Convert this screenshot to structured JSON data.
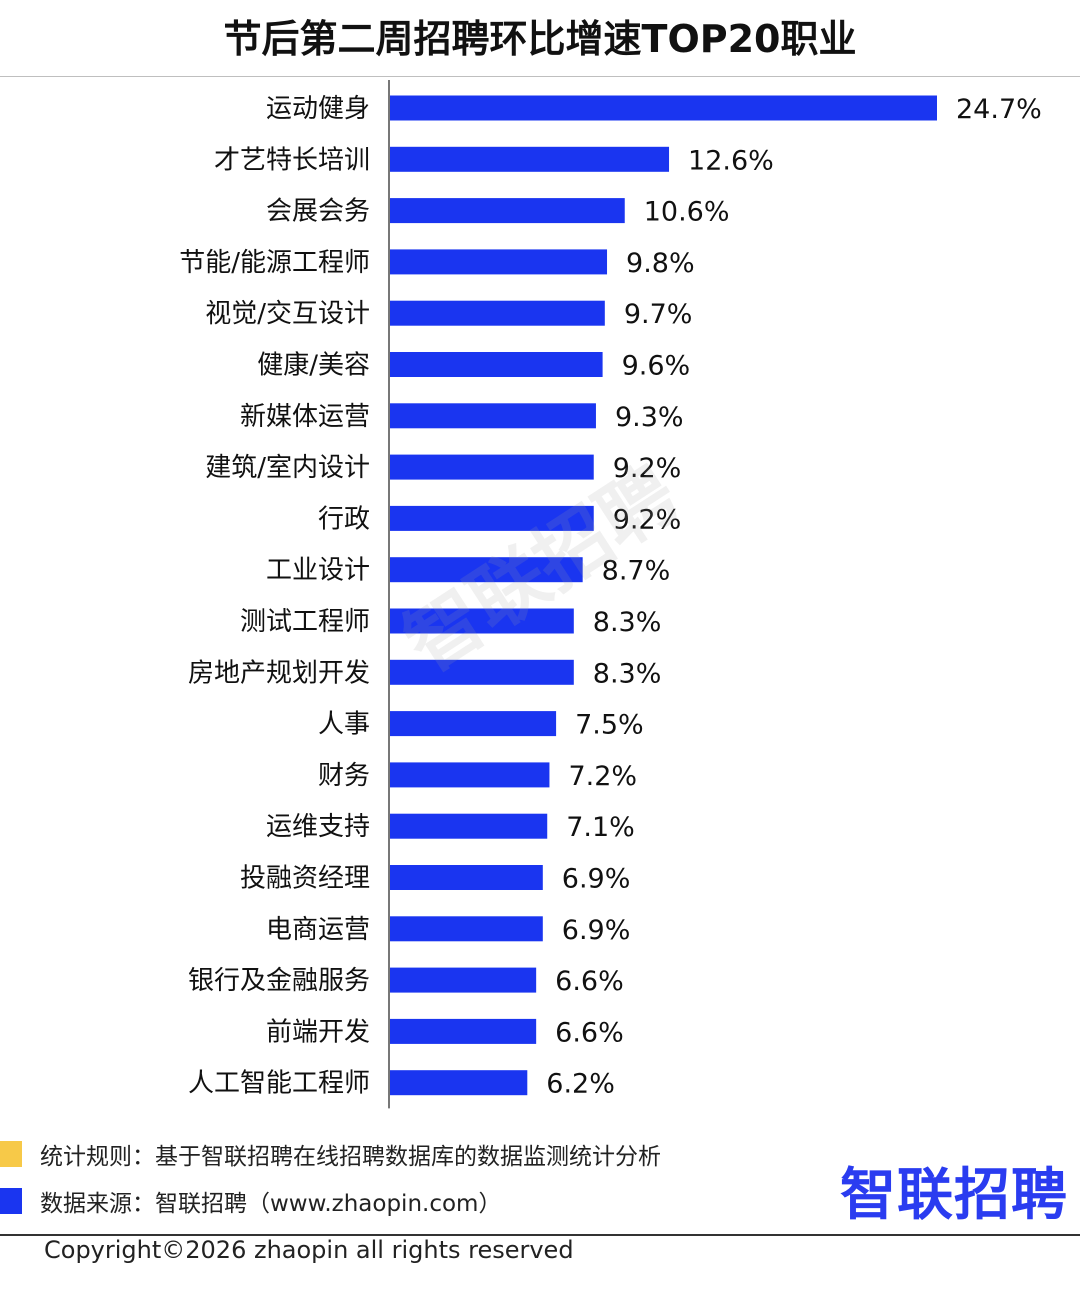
{
  "chart_data": {
    "type": "bar",
    "orientation": "horizontal",
    "title": "节后第二周招聘环比增速TOP20职业",
    "categories": [
      "运动健身",
      "才艺特长培训",
      "会展会务",
      "节能/能源工程师",
      "视觉/交互设计",
      "健康/美容",
      "新媒体运营",
      "建筑/室内设计",
      "行政",
      "工业设计",
      "测试工程师",
      "房地产规划开发",
      "人事",
      "财务",
      "运维支持",
      "投融资经理",
      "电商运营",
      "银行及金融服务",
      "前端开发",
      "人工智能工程师"
    ],
    "values": [
      24.7,
      12.6,
      10.6,
      9.8,
      9.7,
      9.6,
      9.3,
      9.2,
      9.2,
      8.7,
      8.3,
      8.3,
      7.5,
      7.2,
      7.1,
      6.9,
      6.9,
      6.6,
      6.6,
      6.2
    ],
    "value_labels": [
      "24.7%",
      "12.6%",
      "10.6%",
      "9.8%",
      "9.7%",
      "9.6%",
      "9.3%",
      "9.2%",
      "9.2%",
      "8.7%",
      "8.3%",
      "8.3%",
      "7.5%",
      "7.2%",
      "7.1%",
      "6.9%",
      "6.9%",
      "6.6%",
      "6.6%",
      "6.2%"
    ],
    "unit": "%",
    "xlim": [
      0,
      24.7
    ],
    "grid": false,
    "bar_color": "#1a35f0"
  },
  "watermark": "智联招聘",
  "legend": [
    {
      "text": "统计规则：基于智联招聘在线招聘数据库的数据监测统计分析",
      "color": "#f7c948"
    },
    {
      "text": "数据来源：智联招聘（www.zhaopin.com）",
      "color": "#1a35f0"
    }
  ],
  "brand": "智联招聘",
  "brand_color": "#2a3cf0",
  "copyright": "Copyright©2026 zhaopin all rights reserved"
}
